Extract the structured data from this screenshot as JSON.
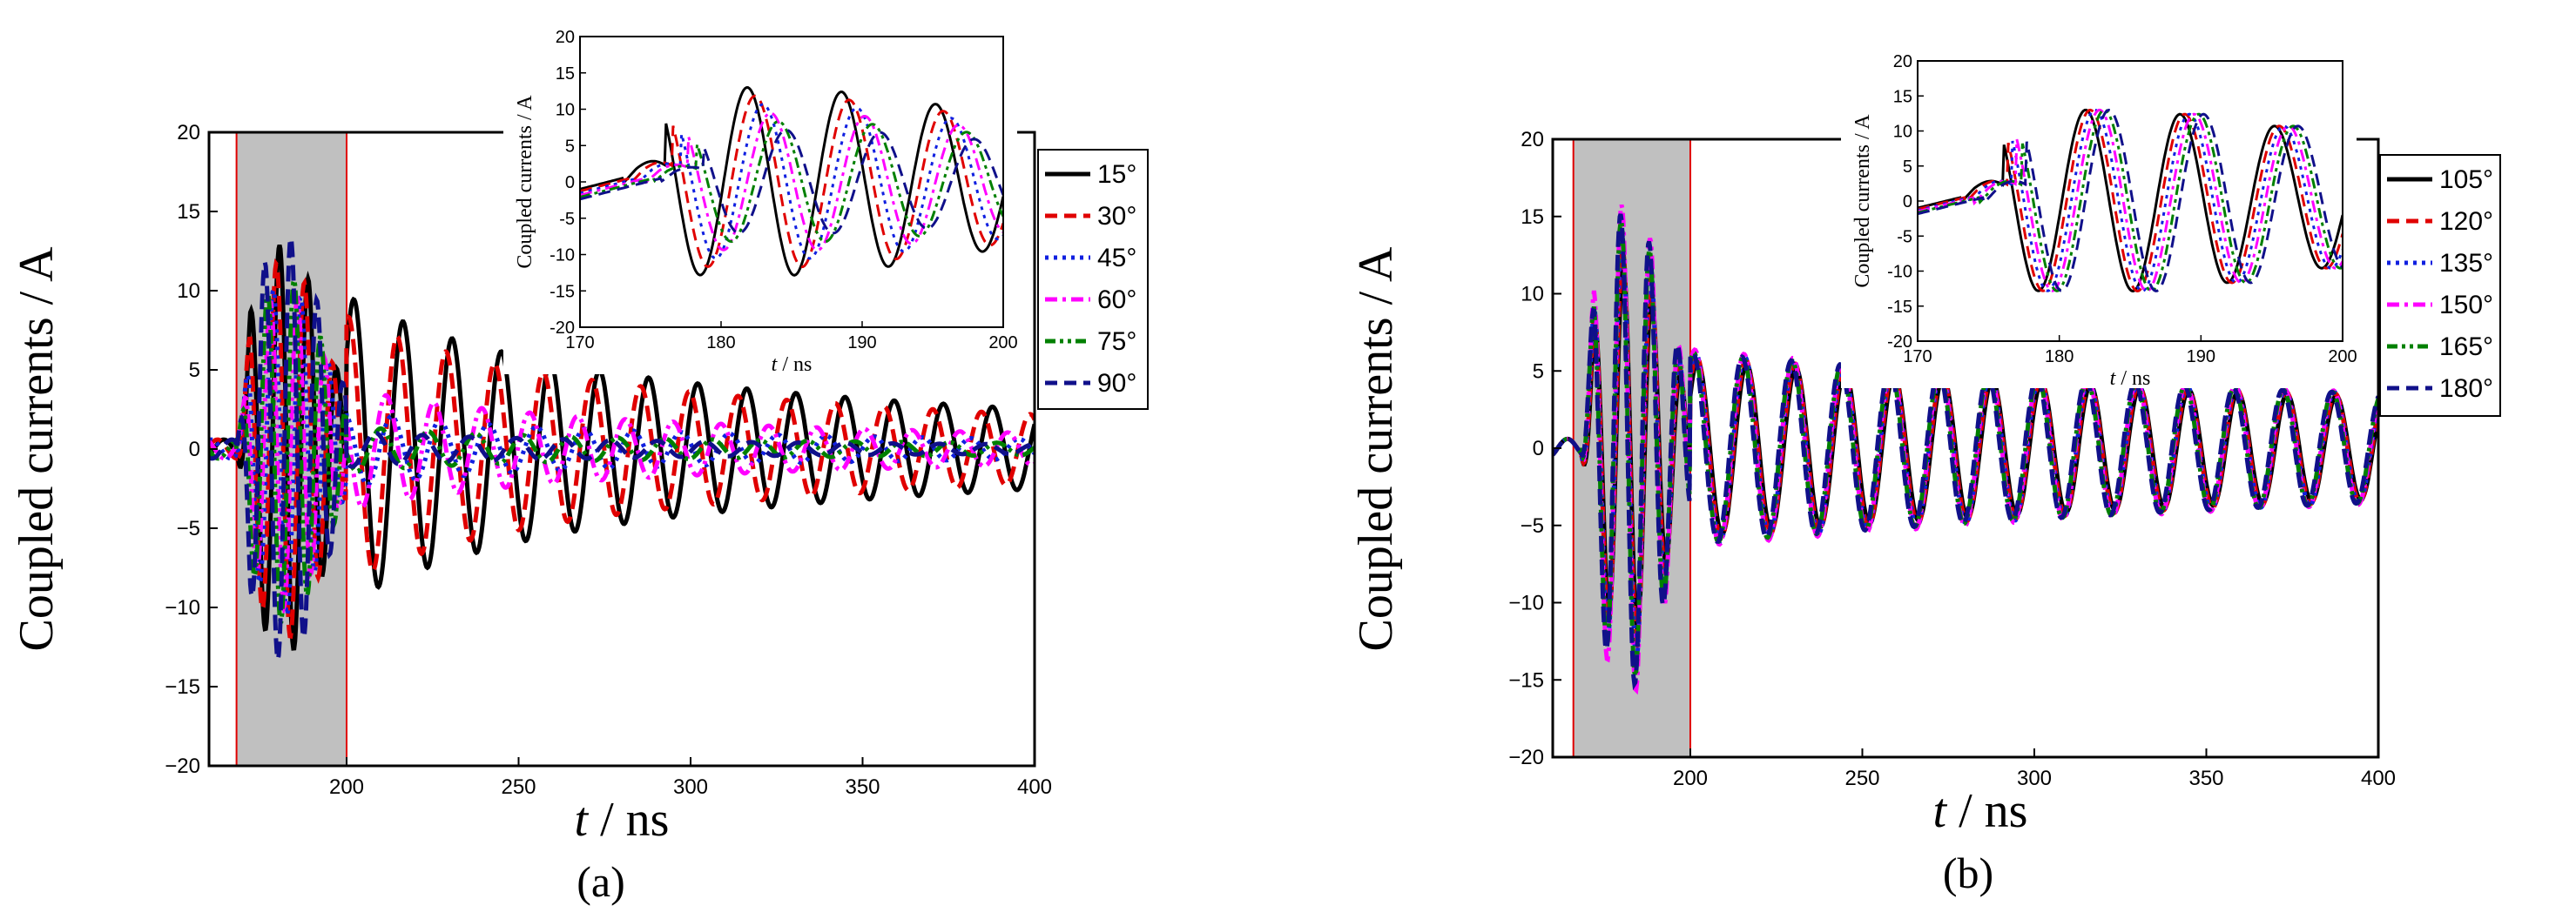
{
  "colors": {
    "s15": "#000000",
    "s30": "#e00000",
    "s45": "#1020e0",
    "s60": "#ff00ff",
    "s75": "#008000",
    "s90": "#10108a",
    "shade": "#c0c0c0",
    "marker": "#e00000"
  },
  "chart_data": [
    {
      "type": "line",
      "panel_label": "(a)",
      "ylabel": "Coupled currents / A",
      "xlabel_italic": "t",
      "xlabel_unit": " / ns",
      "xlim": [
        160,
        400
      ],
      "ylim": [
        -20,
        20
      ],
      "xticks": [
        "200",
        "250",
        "300",
        "350",
        "400"
      ],
      "yticks": [
        "20",
        "15",
        "10",
        "5",
        "0",
        "−5",
        "−10",
        "−15",
        "−20"
      ],
      "shaded_region": [
        168,
        200
      ],
      "legend": [
        "15°",
        "30°",
        "45°",
        "60°",
        "75°",
        "90°"
      ],
      "series_style": [
        "solid",
        "dash",
        "dot",
        "dashdot",
        "dashdotdot",
        "dash"
      ],
      "series_colors": [
        "s15",
        "s30",
        "s45",
        "s60",
        "s75",
        "s90"
      ],
      "series_amplitude": [
        13,
        12,
        10.5,
        10,
        11,
        13.5
      ],
      "series_late_amplitude": [
        6.0,
        5.2,
        1.5,
        2.4,
        0.9,
        0.7
      ],
      "inset": {
        "xlim": [
          170,
          200
        ],
        "ylim": [
          -20,
          20
        ],
        "xticks": [
          "170",
          "180",
          "190",
          "200"
        ],
        "yticks": [
          "20",
          "15",
          "10",
          "5",
          "0",
          "-5",
          "-10",
          "-15",
          "-20"
        ],
        "ylabel": "Coupled currents / A",
        "xlabel_italic": "t",
        "xlabel_unit": " / ns"
      }
    },
    {
      "type": "line",
      "panel_label": "(b)",
      "ylabel": "Coupled currents / A",
      "xlabel_italic": "t",
      "xlabel_unit": " / ns",
      "xlim": [
        160,
        400
      ],
      "ylim": [
        -20,
        20
      ],
      "xticks": [
        "200",
        "250",
        "300",
        "350",
        "400"
      ],
      "yticks": [
        "20",
        "15",
        "10",
        "5",
        "0",
        "−5",
        "−10",
        "−15",
        "−20"
      ],
      "shaded_region": [
        166,
        200
      ],
      "legend": [
        "105°",
        "120°",
        "135°",
        "150°",
        "165°",
        "180°"
      ],
      "series_style": [
        "solid",
        "dash",
        "dot",
        "dashdot",
        "dashdotdot",
        "dash"
      ],
      "series_colors": [
        "s15",
        "s30",
        "s45",
        "s60",
        "s75",
        "s90"
      ],
      "series_amplitude": [
        12,
        13,
        14,
        16,
        15,
        15.5
      ],
      "series_late_amplitude": [
        4.5,
        4.8,
        5.0,
        5.2,
        5.0,
        5.0
      ],
      "inset": {
        "xlim": [
          170,
          200
        ],
        "ylim": [
          -20,
          20
        ],
        "xticks": [
          "170",
          "180",
          "190",
          "200"
        ],
        "yticks": [
          "20",
          "15",
          "10",
          "5",
          "0",
          "-5",
          "-10",
          "-15",
          "-20"
        ],
        "ylabel": "Coupled currents / A",
        "xlabel_italic": "t",
        "xlabel_unit": " / ns"
      }
    }
  ]
}
